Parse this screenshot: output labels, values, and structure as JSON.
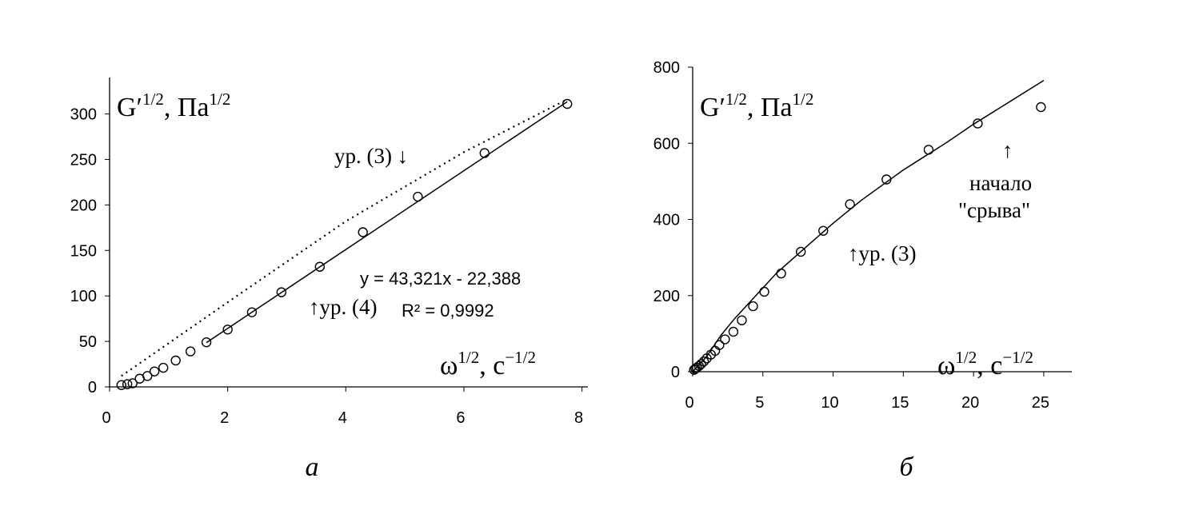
{
  "chart_data": [
    {
      "type": "scatter",
      "y_label": [
        "G′",
        "1/2",
        ", Па",
        "1/2"
      ],
      "x_label": [
        "ω",
        "1/2",
        ", с",
        "−1/2"
      ],
      "xlim": [
        0,
        8.1
      ],
      "ylim": [
        0,
        340
      ],
      "xticks": [
        0,
        2,
        4,
        6,
        8
      ],
      "yticks": [
        0,
        50,
        100,
        150,
        200,
        250,
        300
      ],
      "series": [
        {
          "mode": "markers",
          "color": "#000000",
          "x": [
            0.2,
            0.3,
            0.39,
            0.51,
            0.64,
            0.76,
            0.91,
            1.12,
            1.37,
            1.64,
            2.0,
            2.41,
            2.91,
            3.56,
            4.29,
            5.22,
            6.35,
            7.75
          ],
          "values": [
            2,
            3,
            4,
            9,
            12,
            17,
            21,
            29,
            39,
            49,
            63,
            82,
            104,
            132,
            170,
            209,
            257,
            311
          ]
        },
        {
          "mode": "solid",
          "color": "#000000",
          "x": [
            1.64,
            7.75
          ],
          "values": [
            48.7,
            313.4
          ]
        },
        {
          "mode": "dotted",
          "color": "#000000",
          "x": [
            0.2,
            2,
            4,
            6,
            7.75
          ],
          "values": [
            12,
            93,
            182,
            258,
            316
          ]
        }
      ],
      "annotations": [
        "ур. (3) ↓",
        "↑ур. (4)",
        "y = 43,321x - 22,388",
        "R² = 0,9992"
      ],
      "caption": "а"
    },
    {
      "type": "scatter",
      "y_label": [
        "G′",
        "1/2",
        ", Па",
        "1/2"
      ],
      "x_label": [
        "ω",
        "1/2",
        ", с",
        "−1/2"
      ],
      "xlim": [
        0,
        27
      ],
      "ylim": [
        0,
        800
      ],
      "xticks": [
        0,
        5,
        10,
        15,
        20,
        25
      ],
      "yticks": [
        0,
        200,
        400,
        600,
        800
      ],
      "series": [
        {
          "mode": "markers",
          "color": "#000000",
          "x": [
            0.1,
            0.2,
            0.3,
            0.45,
            0.6,
            0.8,
            1.0,
            1.3,
            1.6,
            1.9,
            2.3,
            2.9,
            3.5,
            4.3,
            5.1,
            6.3,
            7.7,
            9.3,
            11.2,
            13.8,
            16.8,
            20.3,
            24.8
          ],
          "values": [
            5,
            8,
            11,
            15,
            20,
            27,
            35,
            45,
            55,
            70,
            85,
            105,
            135,
            172,
            210,
            258,
            315,
            370,
            440,
            505,
            583,
            652,
            695
          ]
        },
        {
          "mode": "solid",
          "color": "#000000",
          "x": [
            0,
            1,
            2,
            3,
            4,
            5,
            6,
            8,
            10,
            12,
            15,
            18,
            20,
            25
          ],
          "values": [
            0,
            40,
            95,
            140,
            180,
            220,
            260,
            325,
            390,
            450,
            530,
            600,
            650,
            765
          ]
        }
      ],
      "annotations": [
        "↑ур. (3)",
        "↑",
        "начало",
        "\"срыва\""
      ],
      "caption": "б"
    }
  ]
}
